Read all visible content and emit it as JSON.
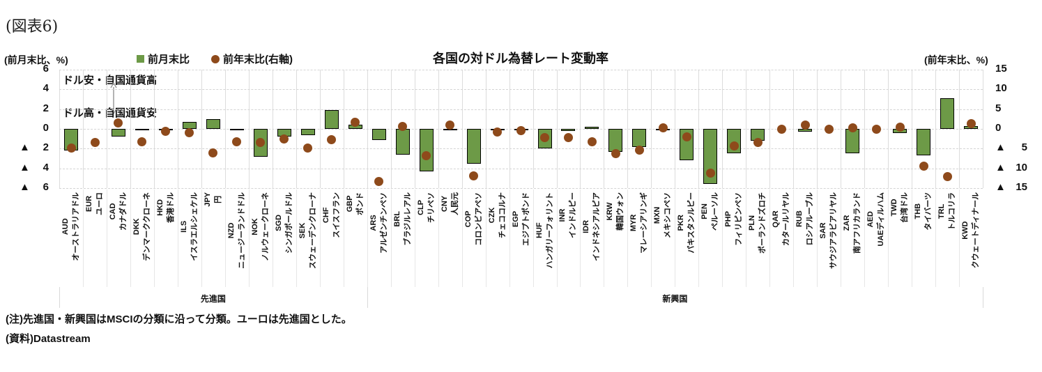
{
  "figure_label": "(図表6)",
  "header": {
    "left_axis_header": "(前月末比、%)",
    "right_axis_header": "(前年末比、%)",
    "title": "各国の対ドル為替レート変動率"
  },
  "legend": {
    "bar_label": "前月末比",
    "dot_label": "前年末比(右軸)"
  },
  "annotations": {
    "upper": "ドル安・自国通貨高",
    "lower": "ドル高・自国通貨安"
  },
  "notes": {
    "note": "(注)先進国・新興国はMSCIの分類に沿って分類。ユーロは先進国とした。",
    "source": "(資料)Datastream"
  },
  "colors": {
    "bar_fill": "#6d9a47",
    "bar_border": "#000000",
    "dot_fill": "#8e4a1b",
    "grid": "#d9d9d9"
  },
  "chart_data": {
    "type": "bar",
    "title": "各国の対ドル為替レート変動率",
    "left_axis": {
      "label": "(前月末比、%)",
      "min": -6,
      "max": 6,
      "ticks": [
        6,
        4,
        2,
        0,
        -2,
        -4,
        -6
      ]
    },
    "right_axis": {
      "label": "(前年末比、%)",
      "min": -15,
      "max": 15,
      "ticks": [
        15,
        10,
        5,
        0,
        -5,
        -10,
        -15
      ]
    },
    "series": [
      {
        "name": "前月末比",
        "type": "bar",
        "axis": "left"
      },
      {
        "name": "前年末比(右軸)",
        "type": "dot",
        "axis": "right"
      }
    ],
    "groups": [
      {
        "label": "先進国",
        "count": 13
      },
      {
        "label": "新興国",
        "count": 26
      }
    ],
    "points": [
      {
        "code": "AUD",
        "name": "オーストラリアドル",
        "mom": -2.2,
        "ytd": -4.9
      },
      {
        "code": "EUR",
        "name": "ユーロ",
        "mom": 0.0,
        "ytd": -3.4
      },
      {
        "code": "CAD",
        "name": "カナダドル",
        "mom": -0.8,
        "ytd": 1.5
      },
      {
        "code": "DKK",
        "name": "デンマーククローネ",
        "mom": -0.1,
        "ytd": -3.2
      },
      {
        "code": "HKD",
        "name": "香港ドル",
        "mom": -0.1,
        "ytd": -0.6
      },
      {
        "code": "ILS",
        "name": "イスラエルシェケル",
        "mom": 0.7,
        "ytd": -0.9
      },
      {
        "code": "JPY",
        "name": "円",
        "mom": 1.0,
        "ytd": -6.0
      },
      {
        "code": "NZD",
        "name": "ニュージーランドドル",
        "mom": -0.1,
        "ytd": -3.2
      },
      {
        "code": "NOK",
        "name": "ノルウェークローネ",
        "mom": -2.8,
        "ytd": -3.5
      },
      {
        "code": "SGD",
        "name": "シンガポールドル",
        "mom": -0.8,
        "ytd": -2.6
      },
      {
        "code": "SEK",
        "name": "スウェーデンクローナ",
        "mom": -0.6,
        "ytd": -4.9
      },
      {
        "code": "CHF",
        "name": "スイスフラン",
        "mom": 1.9,
        "ytd": -2.8
      },
      {
        "code": "GBP",
        "name": "ポンド",
        "mom": 0.4,
        "ytd": 1.6
      },
      {
        "code": "ARS",
        "name": "アルゼンチンペソ",
        "mom": -1.1,
        "ytd": -13.3
      },
      {
        "code": "BRL",
        "name": "ブラジルレアル",
        "mom": -2.6,
        "ytd": 0.6
      },
      {
        "code": "CLP",
        "name": "チリペソ",
        "mom": -4.3,
        "ytd": -6.8
      },
      {
        "code": "CNY",
        "name": "人民元",
        "mom": -0.1,
        "ytd": 1.0
      },
      {
        "code": "COP",
        "name": "コロンビアペソ",
        "mom": -3.5,
        "ytd": -11.9
      },
      {
        "code": "CZK",
        "name": "チェココルナ",
        "mom": -0.1,
        "ytd": -0.8
      },
      {
        "code": "EGP",
        "name": "エジプトポンド",
        "mom": -0.1,
        "ytd": -0.4
      },
      {
        "code": "HUF",
        "name": "ハンガリーフォリント",
        "mom": -2.0,
        "ytd": -2.2
      },
      {
        "code": "INR",
        "name": "インドルピー",
        "mom": -0.2,
        "ytd": -2.2
      },
      {
        "code": "IDR",
        "name": "インドネシアルピア",
        "mom": 0.2,
        "ytd": -3.2
      },
      {
        "code": "KRW",
        "name": "韓国ウォン",
        "mom": -2.3,
        "ytd": -6.2
      },
      {
        "code": "MYR",
        "name": "マレーシアリンギ",
        "mom": -1.8,
        "ytd": -5.3
      },
      {
        "code": "MXN",
        "name": "メキシコペソ",
        "mom": -0.1,
        "ytd": 0.2
      },
      {
        "code": "PKR",
        "name": "パキスタンルピー",
        "mom": -3.2,
        "ytd": -2.1
      },
      {
        "code": "PEN",
        "name": "ペルーソル",
        "mom": -5.6,
        "ytd": -11.2
      },
      {
        "code": "PHP",
        "name": "フィリピンペソ",
        "mom": -2.5,
        "ytd": -4.3
      },
      {
        "code": "PLN",
        "name": "ポーランドズロチ",
        "mom": -1.2,
        "ytd": -3.5
      },
      {
        "code": "QAR",
        "name": "カタールリヤル",
        "mom": 0.0,
        "ytd": -0.1
      },
      {
        "code": "RUB",
        "name": "ロシアルーブル",
        "mom": -0.3,
        "ytd": 0.9
      },
      {
        "code": "SAR",
        "name": "サウジアラビアリヤル",
        "mom": 0.0,
        "ytd": -0.1
      },
      {
        "code": "ZAR",
        "name": "南アフリカランド",
        "mom": -2.5,
        "ytd": 0.3
      },
      {
        "code": "AED",
        "name": "UAEディルハム",
        "mom": 0.0,
        "ytd": 0.0
      },
      {
        "code": "TWD",
        "name": "台湾ドル",
        "mom": -0.4,
        "ytd": 0.5
      },
      {
        "code": "THB",
        "name": "タイバーツ",
        "mom": -2.7,
        "ytd": -9.4
      },
      {
        "code": "TRL",
        "name": "トルコリラ",
        "mom": 3.1,
        "ytd": -12.1
      },
      {
        "code": "KWD",
        "name": "クウェートディナール",
        "mom": 0.3,
        "ytd": 1.4
      }
    ]
  }
}
